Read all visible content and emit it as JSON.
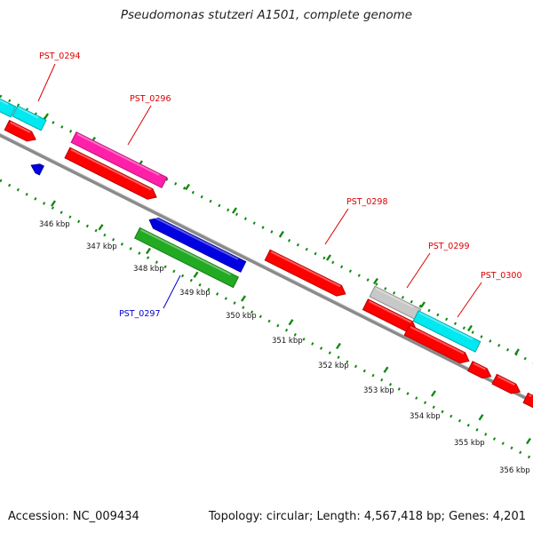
{
  "title": "Pseudomonas stutzeri A1501, complete genome",
  "footer": {
    "accession": "Accession: NC_009434",
    "stats": "Topology: circular; Length: 4,567,418 bp; Genes: 4,201"
  },
  "colors": {
    "red": "#ff0000",
    "cyan": "#00e8f0",
    "magenta": "#ff1fa8",
    "blue": "#0000e0",
    "green": "#22aa22",
    "grey": "#c8c8c8",
    "label_red": "#dd0000",
    "label_blue": "#0000cc",
    "backbone": "#8a8a8a",
    "dots": "#118811"
  },
  "ticks": [
    {
      "label": "346 kbp"
    },
    {
      "label": "347 kbp"
    },
    {
      "label": "348 kbp"
    },
    {
      "label": "349 kbp"
    },
    {
      "label": "350 kbp"
    },
    {
      "label": "351 kbp"
    },
    {
      "label": "352 kbp"
    },
    {
      "label": "353 kbp"
    },
    {
      "label": "354 kbp"
    },
    {
      "label": "355 kbp"
    },
    {
      "label": "356 kbp"
    }
  ],
  "gene_labels": [
    {
      "id": "PST_0294",
      "color": "label_red"
    },
    {
      "id": "PST_0296",
      "color": "label_red"
    },
    {
      "id": "PST_0297",
      "color": "label_blue"
    },
    {
      "id": "PST_0298",
      "color": "label_red"
    },
    {
      "id": "PST_0299",
      "color": "label_red"
    },
    {
      "id": "PST_0300",
      "color": "label_red"
    }
  ]
}
